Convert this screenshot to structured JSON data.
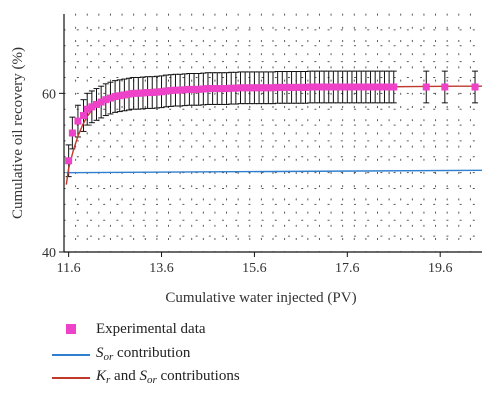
{
  "chart_data": {
    "type": "scatter",
    "xlabel": "Cumulative water injected (PV)",
    "ylabel": "Cumulative oil recovery (%)",
    "xlim": [
      11.5,
      20.5
    ],
    "ylim": [
      40,
      70
    ],
    "x_ticks": [
      11.6,
      13.6,
      15.6,
      17.6,
      19.6
    ],
    "x_tick_labels": [
      "11.6",
      "13.6",
      "15.6",
      "17.6",
      "19.6"
    ],
    "y_ticks": [
      40,
      60
    ],
    "y_tick_labels": [
      "40",
      "60"
    ],
    "grid": "dotted",
    "legend_position": "bottom-left",
    "colors": {
      "experimental": "#ee42c8",
      "sor": "#2f7fd0",
      "kr_sor": "#c0392b"
    },
    "experimental": {
      "name": "Experimental data",
      "x": [
        11.6,
        11.68,
        11.8,
        11.92,
        12.0,
        12.1,
        12.2,
        12.3,
        12.4,
        12.5,
        12.6,
        12.7,
        12.8,
        12.9,
        13.0,
        13.1,
        13.2,
        13.3,
        13.4,
        13.5,
        13.6,
        13.7,
        13.8,
        13.9,
        14.0,
        14.1,
        14.2,
        14.3,
        14.4,
        14.5,
        14.6,
        14.7,
        14.8,
        14.9,
        15.0,
        15.1,
        15.2,
        15.3,
        15.4,
        15.5,
        15.6,
        15.7,
        15.8,
        15.9,
        16.0,
        16.1,
        16.2,
        16.3,
        16.4,
        16.5,
        16.6,
        16.7,
        16.8,
        16.9,
        17.0,
        17.1,
        17.2,
        17.3,
        17.4,
        17.5,
        17.6,
        17.7,
        17.8,
        17.9,
        18.0,
        18.1,
        18.2,
        18.3,
        18.4,
        18.5,
        18.6,
        19.3,
        19.7,
        20.35
      ],
      "y": [
        51.5,
        55.0,
        56.5,
        57.2,
        58.0,
        58.3,
        58.6,
        58.9,
        59.2,
        59.4,
        59.6,
        59.7,
        59.8,
        59.9,
        60.0,
        60.0,
        60.05,
        60.1,
        60.1,
        60.15,
        60.2,
        60.3,
        60.35,
        60.4,
        60.4,
        60.45,
        60.5,
        60.5,
        60.5,
        60.55,
        60.6,
        60.6,
        60.6,
        60.6,
        60.6,
        60.65,
        60.65,
        60.7,
        60.7,
        60.7,
        60.7,
        60.7,
        60.7,
        60.7,
        60.7,
        60.75,
        60.75,
        60.75,
        60.75,
        60.75,
        60.75,
        60.75,
        60.8,
        60.8,
        60.8,
        60.8,
        60.8,
        60.8,
        60.8,
        60.8,
        60.8,
        60.8,
        60.8,
        60.8,
        60.8,
        60.8,
        60.8,
        60.8,
        60.8,
        60.8,
        60.8,
        60.8,
        60.8,
        60.8
      ],
      "error": 2.0
    },
    "sor_curve": {
      "name": "S_or contribution",
      "x": [
        11.55,
        20.5
      ],
      "y": [
        50.0,
        50.3
      ]
    },
    "kr_sor_curve": {
      "name": "K_r and S_or contributions",
      "x": [
        11.55,
        11.6,
        11.7,
        11.8,
        11.9,
        12.0,
        12.2,
        12.4,
        12.6,
        12.8,
        13.0,
        13.3,
        13.6,
        14.0,
        14.5,
        15.0,
        16.0,
        17.0,
        18.0,
        19.0,
        20.0,
        20.5
      ],
      "y": [
        48.5,
        50.5,
        52.8,
        54.6,
        56.0,
        57.1,
        58.6,
        59.4,
        59.9,
        60.1,
        60.3,
        60.45,
        60.55,
        60.65,
        60.7,
        60.75,
        60.8,
        60.8,
        60.8,
        60.85,
        60.9,
        60.9
      ]
    }
  },
  "legend": {
    "experimental_label": "Experimental data",
    "sor_symbol": "S",
    "sor_sub": "or",
    "sor_text": " contribution",
    "kr_symbol": "K",
    "kr_sub": "r",
    "kr_text": " and ",
    "kr_sor_symbol": "S",
    "kr_sor_sub": "or",
    "kr_sor_text": " contributions"
  }
}
